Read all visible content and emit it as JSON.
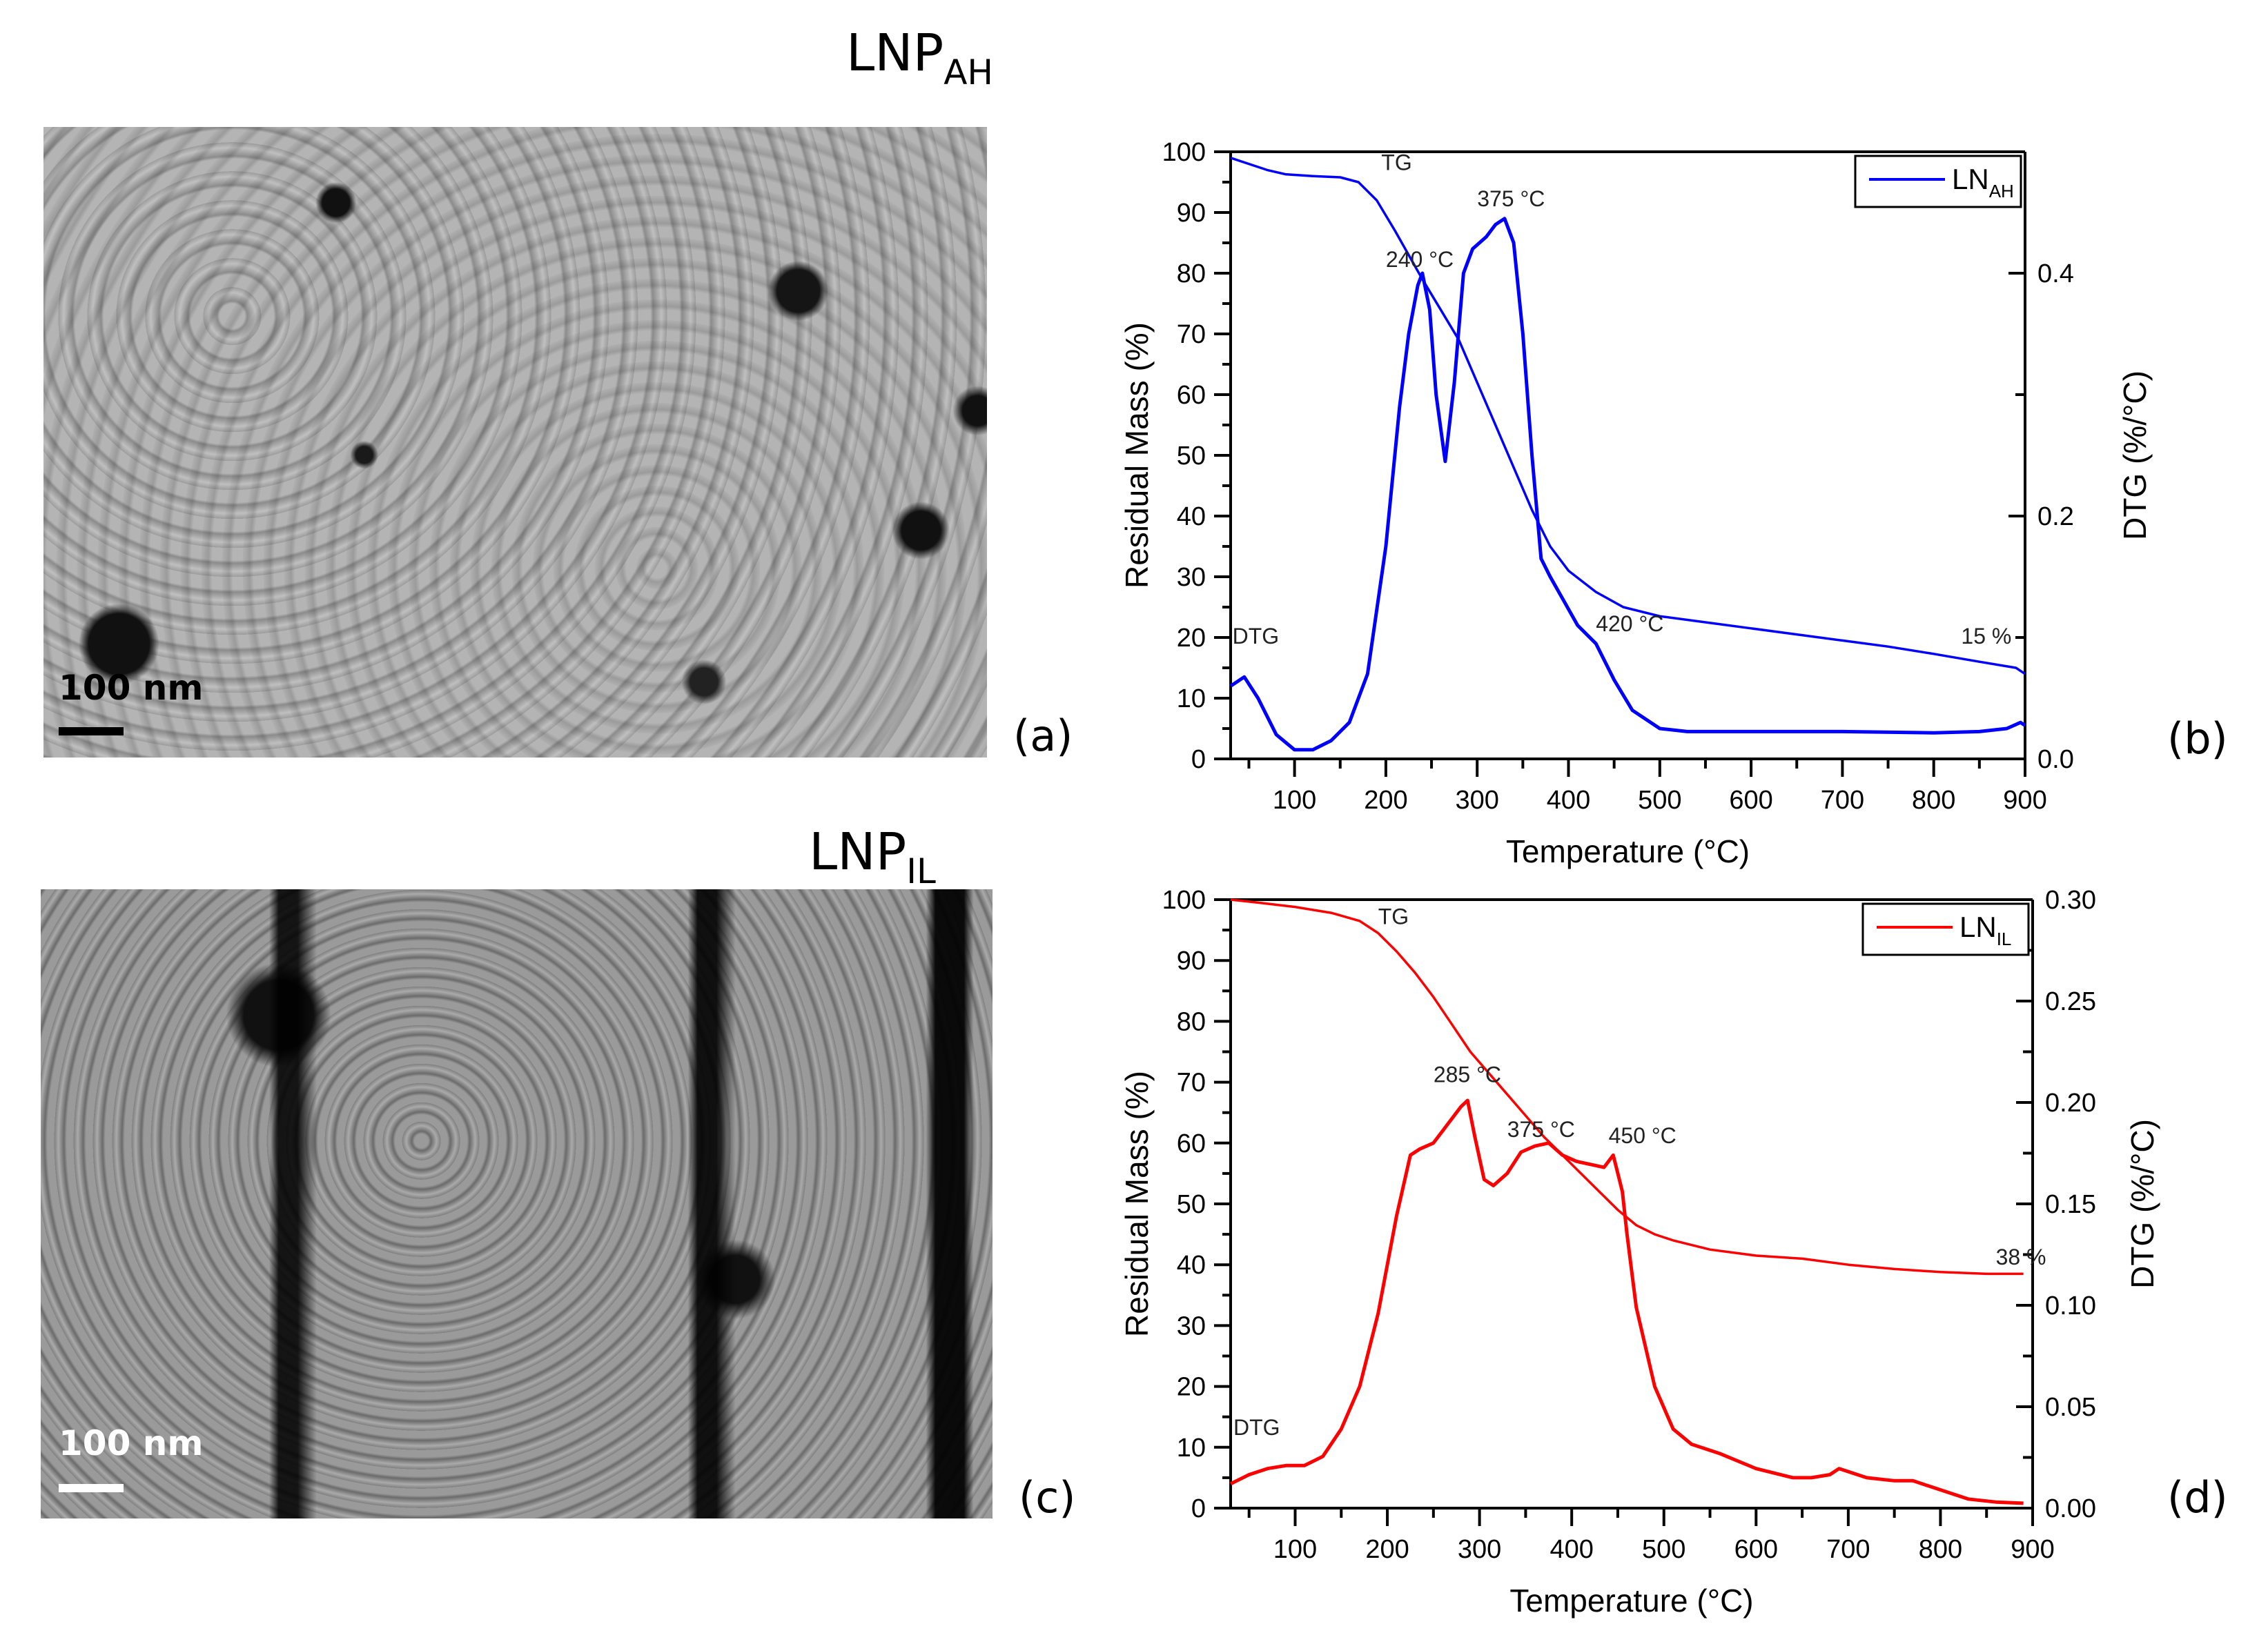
{
  "figure": {
    "panels": {
      "a": {
        "label": "(a)",
        "sample": "LNP",
        "sample_sub": "AH",
        "scale_bar": "100 nm",
        "type": "SEM micrograph"
      },
      "b": {
        "label": "(b)"
      },
      "c": {
        "label": "(c)",
        "sample": "LNP",
        "sample_sub": "IL",
        "scale_bar": "100 nm",
        "type": "SEM micrograph"
      },
      "d": {
        "label": "(d)"
      }
    }
  },
  "chart_data": [
    {
      "type": "line",
      "panel": "b",
      "title": "",
      "xlabel": "Temperature (°C)",
      "ylabel": "Residual Mass (%)",
      "ylabel_right": "DTG (%/°C)",
      "xlim": [
        30,
        900
      ],
      "ylim": [
        0,
        100
      ],
      "ylim_right": [
        0.0,
        0.5
      ],
      "xticks": [
        "100",
        "200",
        "300",
        "400",
        "500",
        "600",
        "700",
        "800",
        "900"
      ],
      "yticks": [
        "0",
        "10",
        "20",
        "30",
        "40",
        "50",
        "60",
        "70",
        "80",
        "90",
        "100"
      ],
      "yticks_right": [
        "0.0",
        "0.2",
        "0.4"
      ],
      "color": "#0000ff",
      "legend": {
        "label": "LN",
        "label_sub": "AH",
        "position": "top-right"
      },
      "annotations": [
        {
          "text": "TG",
          "x": 195,
          "y": 97
        },
        {
          "text": "DTG",
          "x": 32,
          "y": 19
        },
        {
          "text": "240 °C",
          "x": 200,
          "y": 81
        },
        {
          "text": "375 °C",
          "x": 300,
          "y": 91
        },
        {
          "text": "420 °C",
          "x": 430,
          "y": 21
        },
        {
          "text": "15 %",
          "x": 830,
          "y": 19
        }
      ],
      "series": [
        {
          "name": "TG",
          "axis": "left",
          "x": [
            30,
            50,
            70,
            90,
            120,
            150,
            170,
            190,
            210,
            225,
            240,
            260,
            280,
            300,
            320,
            340,
            360,
            380,
            400,
            430,
            460,
            500,
            550,
            600,
            650,
            700,
            750,
            800,
            850,
            890,
            900
          ],
          "y": [
            99,
            98,
            97,
            96.3,
            96,
            95.8,
            95,
            92,
            87,
            83,
            79,
            74,
            69,
            62,
            55,
            48,
            41,
            35,
            31,
            27.5,
            25,
            23.5,
            22.5,
            21.5,
            20.5,
            19.5,
            18.5,
            17.3,
            16,
            15,
            14
          ]
        },
        {
          "name": "DTG",
          "axis": "left_scaled",
          "x": [
            30,
            45,
            60,
            80,
            100,
            120,
            140,
            160,
            180,
            200,
            215,
            225,
            235,
            240,
            248,
            255,
            265,
            275,
            285,
            295,
            310,
            320,
            330,
            340,
            350,
            360,
            370,
            380,
            395,
            410,
            430,
            450,
            470,
            500,
            530,
            600,
            700,
            800,
            850,
            880,
            895,
            900
          ],
          "y": [
            12,
            13.5,
            10,
            4,
            1.5,
            1.5,
            3,
            6,
            14,
            35,
            58,
            70,
            78,
            80,
            74,
            60,
            49,
            62,
            80,
            84,
            86,
            88,
            89,
            85,
            70,
            50,
            33,
            30,
            26,
            22,
            19,
            13,
            8,
            5,
            4.5,
            4.5,
            4.5,
            4.3,
            4.5,
            5,
            6,
            5.5
          ]
        }
      ]
    },
    {
      "type": "line",
      "panel": "d",
      "title": "",
      "xlabel": "Temperature (°C)",
      "ylabel": "Residual Mass (%)",
      "ylabel_right": "DTG (%/°C)",
      "xlim": [
        30,
        900
      ],
      "ylim": [
        0,
        100
      ],
      "ylim_right": [
        0.0,
        0.3
      ],
      "xticks": [
        "100",
        "200",
        "300",
        "400",
        "500",
        "600",
        "700",
        "800",
        "900"
      ],
      "yticks": [
        "0",
        "10",
        "20",
        "30",
        "40",
        "50",
        "60",
        "70",
        "80",
        "90",
        "100"
      ],
      "yticks_right": [
        "0.00",
        "0.05",
        "0.10",
        "0.15",
        "0.20",
        "0.25",
        "0.30"
      ],
      "color": "#ff0000",
      "legend": {
        "label": "LN",
        "label_sub": "IL",
        "position": "top-right"
      },
      "annotations": [
        {
          "text": "TG",
          "x": 190,
          "y": 96
        },
        {
          "text": "DTG",
          "x": 33,
          "y": 12
        },
        {
          "text": "285 °C",
          "x": 250,
          "y": 70
        },
        {
          "text": "375 °C",
          "x": 330,
          "y": 61
        },
        {
          "text": "450 °C",
          "x": 440,
          "y": 60
        },
        {
          "text": "38 %",
          "x": 860,
          "y": 40
        }
      ],
      "series": [
        {
          "name": "TG",
          "axis": "left",
          "x": [
            30,
            60,
            100,
            140,
            170,
            190,
            210,
            230,
            250,
            270,
            290,
            310,
            330,
            350,
            370,
            390,
            410,
            430,
            450,
            470,
            490,
            510,
            550,
            600,
            650,
            700,
            750,
            800,
            850,
            890
          ],
          "y": [
            100,
            99.5,
            98.8,
            97.8,
            96.5,
            94.5,
            91.5,
            88,
            84,
            79.5,
            75,
            71.5,
            68,
            64.5,
            61,
            58,
            55,
            52,
            49,
            46.5,
            45,
            44,
            42.5,
            41.5,
            41,
            40,
            39.3,
            38.8,
            38.5,
            38.5
          ]
        },
        {
          "name": "DTG",
          "axis": "left_scaled",
          "x": [
            30,
            50,
            70,
            90,
            110,
            130,
            150,
            170,
            190,
            210,
            225,
            235,
            250,
            265,
            280,
            287,
            295,
            305,
            315,
            330,
            345,
            360,
            375,
            390,
            405,
            420,
            435,
            445,
            450,
            455,
            460,
            470,
            490,
            510,
            530,
            560,
            600,
            640,
            660,
            680,
            690,
            700,
            720,
            750,
            770,
            800,
            830,
            860,
            890
          ],
          "y": [
            4,
            5.5,
            6.5,
            7,
            7,
            8.5,
            13,
            20,
            32,
            48,
            58,
            59,
            60,
            63,
            66,
            67,
            61,
            54,
            53,
            55,
            58.5,
            59.5,
            60,
            58,
            57,
            56.5,
            56,
            58,
            55,
            52,
            45,
            33,
            20,
            13,
            10.5,
            9,
            6.5,
            5,
            5,
            5.5,
            6.5,
            6,
            5,
            4.5,
            4.5,
            3,
            1.5,
            1,
            0.8
          ]
        }
      ]
    }
  ]
}
